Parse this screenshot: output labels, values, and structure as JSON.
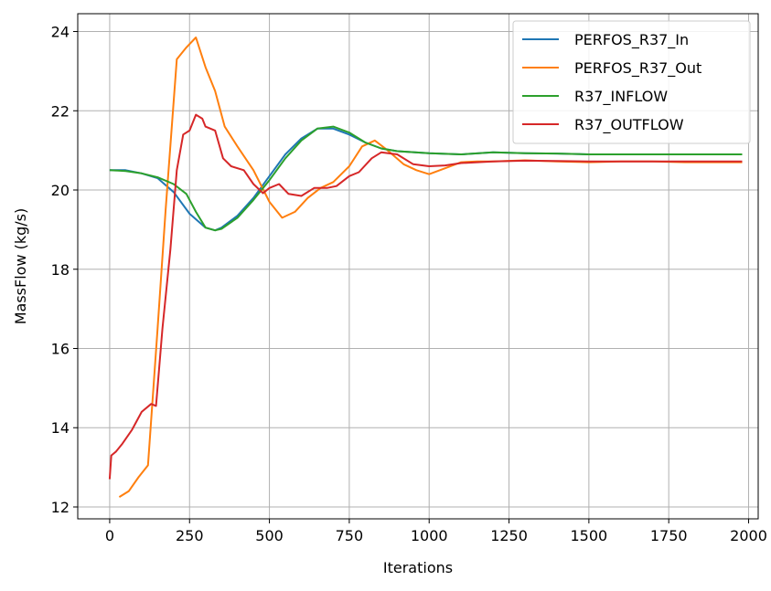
{
  "chart_data": {
    "type": "line",
    "title": "",
    "xlabel": "Iterations",
    "ylabel": "MassFlow (kg/s)",
    "xlim": [
      -100,
      2030
    ],
    "ylim": [
      11.7,
      24.45
    ],
    "xticks": [
      0,
      250,
      500,
      750,
      1000,
      1250,
      1500,
      1750,
      2000
    ],
    "yticks": [
      12,
      14,
      16,
      18,
      20,
      22,
      24
    ],
    "xtick_labels": [
      "0",
      "250",
      "500",
      "750",
      "1000",
      "1250",
      "1500",
      "1750",
      "2000"
    ],
    "ytick_labels": [
      "12",
      "14",
      "16",
      "18",
      "20",
      "22",
      "24"
    ],
    "grid": true,
    "legend_position": "top-right",
    "series": [
      {
        "name": "PERFOS_R37_In",
        "color": "#1f77b4",
        "x": [
          0,
          50,
          100,
          150,
          200,
          250,
          300,
          330,
          350,
          400,
          450,
          500,
          550,
          600,
          650,
          700,
          750,
          800,
          850,
          900,
          1000,
          1100,
          1200,
          1300,
          1400,
          1500,
          1600,
          1700,
          1800,
          1900,
          1980
        ],
        "y": [
          20.5,
          20.5,
          20.42,
          20.3,
          19.95,
          19.4,
          19.05,
          18.98,
          19.05,
          19.35,
          19.8,
          20.35,
          20.9,
          21.3,
          21.55,
          21.55,
          21.4,
          21.2,
          21.05,
          20.98,
          20.93,
          20.9,
          20.95,
          20.93,
          20.92,
          20.9,
          20.9,
          20.9,
          20.9,
          20.9,
          20.9
        ]
      },
      {
        "name": "PERFOS_R37_Out",
        "color": "#ff7f0e",
        "x": [
          30,
          60,
          90,
          120,
          150,
          175,
          210,
          240,
          270,
          300,
          330,
          360,
          400,
          450,
          500,
          540,
          580,
          620,
          660,
          700,
          750,
          790,
          830,
          870,
          920,
          960,
          1000,
          1050,
          1100,
          1150,
          1200,
          1300,
          1400,
          1500,
          1600,
          1700,
          1800,
          1900,
          1980
        ],
        "y": [
          12.25,
          12.4,
          12.75,
          13.05,
          16.5,
          19.5,
          23.3,
          23.6,
          23.85,
          23.1,
          22.5,
          21.6,
          21.1,
          20.5,
          19.7,
          19.3,
          19.45,
          19.8,
          20.05,
          20.2,
          20.6,
          21.1,
          21.25,
          21.0,
          20.65,
          20.5,
          20.4,
          20.55,
          20.7,
          20.72,
          20.72,
          20.75,
          20.72,
          20.7,
          20.72,
          20.72,
          20.7,
          20.7,
          20.7
        ]
      },
      {
        "name": "R37_INFLOW",
        "color": "#2ca02c",
        "x": [
          0,
          50,
          100,
          150,
          200,
          240,
          270,
          300,
          330,
          350,
          400,
          450,
          500,
          550,
          600,
          650,
          700,
          750,
          800,
          850,
          900,
          1000,
          1100,
          1200,
          1300,
          1400,
          1500,
          1600,
          1700,
          1800,
          1900,
          1980
        ],
        "y": [
          20.5,
          20.48,
          20.42,
          20.32,
          20.15,
          19.9,
          19.45,
          19.05,
          18.98,
          19.02,
          19.3,
          19.75,
          20.25,
          20.8,
          21.25,
          21.55,
          21.6,
          21.45,
          21.2,
          21.05,
          20.98,
          20.93,
          20.9,
          20.95,
          20.93,
          20.92,
          20.9,
          20.9,
          20.9,
          20.9,
          20.9,
          20.9
        ]
      },
      {
        "name": "R37_OUTFLOW",
        "color": "#d62728",
        "x": [
          0,
          5,
          20,
          40,
          70,
          100,
          130,
          145,
          165,
          190,
          210,
          230,
          250,
          270,
          290,
          300,
          330,
          355,
          380,
          420,
          450,
          480,
          500,
          530,
          560,
          600,
          640,
          680,
          710,
          750,
          780,
          820,
          850,
          900,
          950,
          1000,
          1050,
          1100,
          1200,
          1300,
          1400,
          1500,
          1600,
          1700,
          1800,
          1900,
          1980
        ],
        "y": [
          12.7,
          13.3,
          13.4,
          13.6,
          13.95,
          14.4,
          14.6,
          14.55,
          16.5,
          18.5,
          20.5,
          21.4,
          21.5,
          21.9,
          21.8,
          21.6,
          21.5,
          20.8,
          20.6,
          20.5,
          20.15,
          19.92,
          20.05,
          20.15,
          19.9,
          19.85,
          20.05,
          20.05,
          20.1,
          20.35,
          20.45,
          20.8,
          20.95,
          20.9,
          20.65,
          20.6,
          20.62,
          20.68,
          20.72,
          20.74,
          20.73,
          20.72,
          20.72,
          20.72,
          20.72,
          20.72,
          20.72
        ]
      }
    ]
  }
}
